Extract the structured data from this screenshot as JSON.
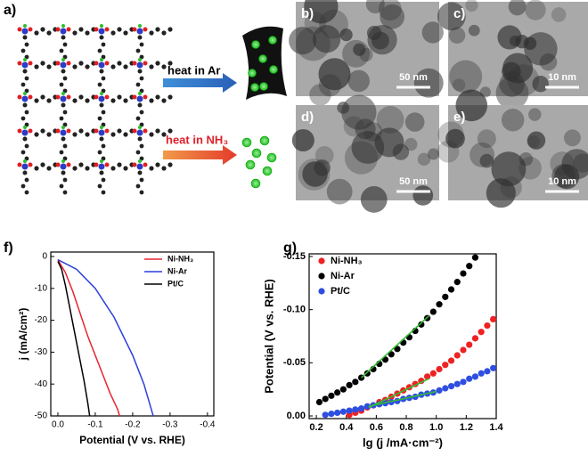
{
  "figure": {
    "panel_labels": [
      "a)",
      "b)",
      "c)",
      "d)",
      "e)",
      "f)",
      "g)"
    ],
    "arrows": [
      "heat in Ar",
      "heat in NH₃"
    ],
    "scale_bars": [
      "50 nm",
      "10 nm",
      "50 nm",
      "10 nm"
    ]
  },
  "chart_data": [
    {
      "type": "line",
      "xlabel": "Potential (V vs. RHE)",
      "ylabel": "j (mA/cm²)",
      "xlim": [
        0.019,
        -0.417
      ],
      "ylim": [
        -50,
        1.4
      ],
      "xticks": [
        {
          "value": 0,
          "label": "0.0"
        },
        -0.1,
        -0.2,
        -0.3,
        -0.4
      ],
      "yticks": [
        0,
        -10,
        -20,
        -30,
        -40,
        -50
      ],
      "legend": "upper right",
      "series": [
        {
          "name": "Ni-NH₃",
          "color": "#e8242f",
          "x": [
            0,
            -0.02,
            -0.04,
            -0.06,
            -0.08,
            -0.1,
            -0.12,
            -0.14,
            -0.16,
            -0.165
          ],
          "values": [
            -1,
            -5,
            -11,
            -18,
            -25,
            -31,
            -37,
            -43,
            -48,
            -50
          ]
        },
        {
          "name": "Ni-Ar",
          "color": "#2b3fd8",
          "x": [
            0,
            -0.05,
            -0.1,
            -0.15,
            -0.2,
            -0.23,
            -0.25,
            -0.255
          ],
          "values": [
            -1,
            -4,
            -10,
            -19,
            -31,
            -40,
            -48,
            -50
          ]
        },
        {
          "name": "Pt/C",
          "color": "#000000",
          "x": [
            0,
            -0.01,
            -0.02,
            -0.03,
            -0.04,
            -0.05,
            -0.06,
            -0.07,
            -0.08,
            -0.085
          ],
          "values": [
            -1.5,
            -4,
            -9,
            -15,
            -21,
            -27,
            -33,
            -39,
            -46,
            -50
          ]
        }
      ]
    },
    {
      "type": "scatter",
      "xlabel": "lg (j /mA·cm⁻²)",
      "ylabel": "Potential (V vs. RHE)",
      "xlim": [
        0.152,
        1.4
      ],
      "ylim": [
        0.0025,
        -0.1525
      ],
      "xticks": [
        0.2,
        0.4,
        0.6,
        0.8,
        {
          "value": 1,
          "label": "1.0"
        },
        1.2,
        1.4
      ],
      "yticks": [
        {
          "value": 0,
          "label": "0.00"
        },
        -0.05,
        {
          "value": -0.1,
          "label": "-0.10"
        },
        -0.15
      ],
      "legend": "upper left",
      "series": [
        {
          "name": "Ni-NH₃",
          "color": "#ee2222",
          "x": [
            0.42,
            0.46,
            0.5,
            0.54,
            0.58,
            0.62,
            0.66,
            0.7,
            0.74,
            0.78,
            0.82,
            0.86,
            0.9,
            0.94,
            0.98,
            1.02,
            1.06,
            1.1,
            1.14,
            1.18,
            1.22,
            1.26,
            1.3,
            1.34,
            1.38
          ],
          "values": [
            -0.001,
            -0.003,
            -0.005,
            -0.008,
            -0.01,
            -0.013,
            -0.015,
            -0.018,
            -0.021,
            -0.024,
            -0.027,
            -0.03,
            -0.033,
            -0.037,
            -0.04,
            -0.044,
            -0.048,
            -0.052,
            -0.057,
            -0.062,
            -0.067,
            -0.073,
            -0.079,
            -0.085,
            -0.091
          ]
        },
        {
          "name": "Ni-Ar",
          "color": "#000000",
          "x": [
            0.22,
            0.26,
            0.3,
            0.34,
            0.38,
            0.42,
            0.46,
            0.5,
            0.54,
            0.58,
            0.62,
            0.66,
            0.7,
            0.74,
            0.78,
            0.82,
            0.86,
            0.9,
            0.94,
            0.98,
            1.02,
            1.06,
            1.1,
            1.14,
            1.18,
            1.22,
            1.26
          ],
          "values": [
            -0.013,
            -0.016,
            -0.019,
            -0.022,
            -0.025,
            -0.029,
            -0.032,
            -0.036,
            -0.04,
            -0.044,
            -0.049,
            -0.053,
            -0.058,
            -0.063,
            -0.069,
            -0.074,
            -0.08,
            -0.086,
            -0.092,
            -0.098,
            -0.105,
            -0.112,
            -0.119,
            -0.126,
            -0.134,
            -0.141,
            -0.149
          ]
        },
        {
          "name": "Pt/C",
          "color": "#2e4ee0",
          "x": [
            0.26,
            0.3,
            0.34,
            0.38,
            0.42,
            0.46,
            0.5,
            0.54,
            0.58,
            0.62,
            0.66,
            0.7,
            0.74,
            0.78,
            0.82,
            0.86,
            0.9,
            0.94,
            0.98,
            1.02,
            1.06,
            1.1,
            1.14,
            1.18,
            1.22,
            1.26,
            1.3,
            1.34,
            1.38
          ],
          "values": [
            -0.001,
            -0.002,
            -0.003,
            -0.004,
            -0.005,
            -0.006,
            -0.007,
            -0.009,
            -0.01,
            -0.011,
            -0.012,
            -0.013,
            -0.014,
            -0.016,
            -0.017,
            -0.018,
            -0.02,
            -0.021,
            -0.022,
            -0.024,
            -0.026,
            -0.028,
            -0.03,
            -0.032,
            -0.035,
            -0.037,
            -0.04,
            -0.042,
            -0.045
          ]
        }
      ],
      "fits": [
        {
          "color": "#33bb33",
          "x": [
            0.5,
            0.95
          ],
          "values": [
            -0.036,
            -0.094
          ]
        },
        {
          "color": "#33bb33",
          "x": [
            0.55,
            0.95
          ],
          "values": [
            -0.008,
            -0.035
          ]
        },
        {
          "color": "#33bb33",
          "x": [
            0.55,
            1.0
          ],
          "values": [
            -0.009,
            -0.023
          ]
        }
      ]
    }
  ]
}
